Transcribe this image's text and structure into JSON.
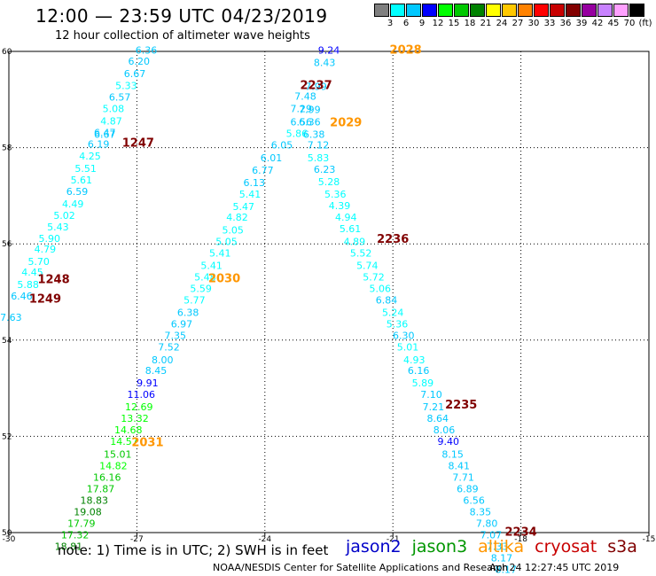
{
  "header": {
    "title": "12:00 — 23:59 UTC 04/23/2019",
    "subtitle": "12 hour collection of altimeter wave heights"
  },
  "color_scale": {
    "unit_label": "(ft)",
    "labels": [
      "3",
      "6",
      "9",
      "12",
      "15",
      "18",
      "21",
      "24",
      "27",
      "30",
      "33",
      "36",
      "39",
      "42",
      "45",
      "70"
    ],
    "colors": [
      "#7f7f7f",
      "#00ffff",
      "#00c8ff",
      "#0000ff",
      "#00ff00",
      "#00c800",
      "#008200",
      "#ffff00",
      "#ffc800",
      "#ff8200",
      "#ff0000",
      "#c80000",
      "#820000",
      "#9600a0",
      "#c882ff",
      "#ffa0ff",
      "#000000"
    ]
  },
  "footer": {
    "note": "note:  1) Time is in UTC;  2) SWH is in feet",
    "satellites": [
      {
        "name": "jason2",
        "color": "#0000c8"
      },
      {
        "name": "jason3",
        "color": "#009600"
      },
      {
        "name": "altika",
        "color": "#ff9600"
      },
      {
        "name": "cryosat",
        "color": "#c80000"
      },
      {
        "name": "s3a",
        "color": "#800000"
      }
    ],
    "credit": "NOAA/NESDIS Center for Satellite Applications and Research",
    "timestamp": "Apr 24 12:27:45 UTC 2019"
  },
  "chart_data": {
    "type": "scatter",
    "title": "12:00 — 23:59 UTC 04/23/2019",
    "subtitle": "12 hour collection of altimeter wave heights",
    "xlim": [
      -30,
      -15
    ],
    "ylim": [
      50,
      60
    ],
    "x_ticks": [
      "-30",
      "-27",
      "-24",
      "-21",
      "-18",
      "-15"
    ],
    "y_ticks": [
      "50",
      "52",
      "54",
      "56",
      "58",
      "60"
    ],
    "grid": true,
    "time_labels": [
      {
        "text": "2028",
        "lon": -20.7,
        "lat": 59.95,
        "color": "#ff9600"
      },
      {
        "text": "2237",
        "lon": -22.8,
        "lat": 59.22,
        "color": "#800000"
      },
      {
        "text": "2029",
        "lon": -22.1,
        "lat": 58.44,
        "color": "#ff9600"
      },
      {
        "text": "1247",
        "lon": -26.97,
        "lat": 58.02,
        "color": "#800000"
      },
      {
        "text": "2236",
        "lon": -21.0,
        "lat": 56.02,
        "color": "#800000"
      },
      {
        "text": "1248",
        "lon": -28.95,
        "lat": 55.18,
        "color": "#800000"
      },
      {
        "text": "2030",
        "lon": -24.95,
        "lat": 55.2,
        "color": "#ff9600"
      },
      {
        "text": "1249",
        "lon": -29.15,
        "lat": 54.78,
        "color": "#800000"
      },
      {
        "text": "2235",
        "lon": -19.4,
        "lat": 52.58,
        "color": "#800000"
      },
      {
        "text": "2031",
        "lon": -26.75,
        "lat": 51.8,
        "color": "#ff9600"
      },
      {
        "text": "2234",
        "lon": -18.0,
        "lat": 49.94,
        "color": "#800000"
      }
    ],
    "series": [
      {
        "name": "1247-1249 track",
        "points": [
          [
            "6.36",
            -26.78,
            59.95
          ],
          [
            "6.20",
            -26.95,
            59.72
          ],
          [
            "6.67",
            -27.05,
            59.47
          ],
          [
            "5.33",
            -27.25,
            59.22
          ],
          [
            "6.57",
            -27.4,
            58.98
          ],
          [
            "5.08",
            -27.55,
            58.74
          ],
          [
            "4.87",
            -27.6,
            58.48
          ],
          [
            "6.47",
            -27.75,
            58.24
          ],
          [
            "6.67",
            -27.75,
            58.2
          ],
          [
            "6.19",
            -27.9,
            58.0
          ],
          [
            "4.25",
            -28.1,
            57.75
          ],
          [
            "5.51",
            -28.2,
            57.5
          ],
          [
            "5.61",
            -28.3,
            57.26
          ],
          [
            "6.59",
            -28.4,
            57.02
          ],
          [
            "4.49",
            -28.5,
            56.76
          ],
          [
            "5.02",
            -28.7,
            56.52
          ],
          [
            "5.43",
            -28.85,
            56.28
          ],
          [
            "5.90",
            -29.05,
            56.04
          ],
          [
            "4.79",
            -29.15,
            55.82
          ],
          [
            "5.70",
            -29.3,
            55.56
          ],
          [
            "4.45",
            -29.45,
            55.34
          ],
          [
            "5.88",
            -29.55,
            55.08
          ],
          [
            "6.46",
            -29.7,
            54.84
          ],
          [
            "7.63",
            -29.95,
            54.4
          ]
        ]
      },
      {
        "name": "2028-2031 track",
        "points": [
          [
            "9.24",
            -22.5,
            59.95
          ],
          [
            "8.43",
            -22.6,
            59.7
          ],
          [
            "7.99",
            -22.8,
            59.2
          ],
          [
            "7.48",
            -23.05,
            59.0
          ],
          [
            "7.29",
            -23.15,
            58.74
          ],
          [
            "7.99",
            -22.95,
            58.72
          ],
          [
            "6.56",
            -23.15,
            58.46
          ],
          [
            "6.36",
            -22.95,
            58.46
          ],
          [
            "6.38",
            -22.85,
            58.2
          ],
          [
            "5.86",
            -23.25,
            58.22
          ],
          [
            "7.12",
            -22.75,
            57.98
          ],
          [
            "6.05",
            -23.6,
            57.98
          ],
          [
            "5.83",
            -22.75,
            57.72
          ],
          [
            "6.01",
            -23.85,
            57.72
          ],
          [
            "6.23",
            -22.6,
            57.48
          ],
          [
            "6.77",
            -24.05,
            57.46
          ],
          [
            "5.28",
            -22.5,
            57.22
          ],
          [
            "6.13",
            -24.25,
            57.2
          ],
          [
            "5.36",
            -22.35,
            56.96
          ],
          [
            "5.41",
            -24.35,
            56.96
          ],
          [
            "4.39",
            -22.25,
            56.72
          ],
          [
            "5.47",
            -24.5,
            56.7
          ],
          [
            "4.94",
            -22.1,
            56.48
          ],
          [
            "4.82",
            -24.65,
            56.48
          ],
          [
            "5.61",
            -22.0,
            56.24
          ],
          [
            "5.05",
            -24.75,
            56.22
          ],
          [
            "4.89",
            -21.9,
            55.98
          ],
          [
            "5.05",
            -24.9,
            55.98
          ],
          [
            "5.52",
            -21.75,
            55.74
          ],
          [
            "5.41",
            -25.05,
            55.74
          ],
          [
            "5.74",
            -21.6,
            55.48
          ],
          [
            "5.41",
            -25.25,
            55.48
          ],
          [
            "5.72",
            -21.45,
            55.24
          ],
          [
            "5.48",
            -25.4,
            55.24
          ],
          [
            "5.06",
            -21.3,
            55.0
          ],
          [
            "5.59",
            -25.5,
            55.0
          ],
          [
            "6.84",
            -21.15,
            54.76
          ],
          [
            "5.77",
            -25.65,
            54.76
          ],
          [
            "5.24",
            -21.0,
            54.5
          ],
          [
            "6.38",
            -25.8,
            54.5
          ],
          [
            "5.36",
            -20.9,
            54.26
          ],
          [
            "6.97",
            -25.95,
            54.26
          ],
          [
            "6.30",
            -20.75,
            54.02
          ],
          [
            "7.35",
            -26.1,
            54.02
          ],
          [
            "5.01",
            -20.65,
            53.78
          ],
          [
            "7.52",
            -26.25,
            53.78
          ],
          [
            "4.93",
            -20.5,
            53.52
          ],
          [
            "8.00",
            -26.4,
            53.52
          ],
          [
            "6.16",
            -20.4,
            53.3
          ],
          [
            "8.45",
            -26.55,
            53.3
          ],
          [
            "5.89",
            -20.3,
            53.04
          ],
          [
            "9.91",
            -26.75,
            53.04
          ],
          [
            "7.10",
            -20.1,
            52.8
          ],
          [
            "11.06",
            -26.9,
            52.8
          ],
          [
            "7.21",
            -20.05,
            52.54
          ],
          [
            "12.69",
            -26.95,
            52.54
          ],
          [
            "8.64",
            -19.95,
            52.3
          ],
          [
            "13.32",
            -27.05,
            52.3
          ],
          [
            "8.06",
            -19.8,
            52.06
          ],
          [
            "14.68",
            -27.2,
            52.06
          ],
          [
            "9.40",
            -19.7,
            51.82
          ],
          [
            "14.57",
            -27.3,
            51.82
          ],
          [
            "8.15",
            -19.6,
            51.56
          ],
          [
            "15.01",
            -27.45,
            51.56
          ],
          [
            "8.41",
            -19.45,
            51.32
          ],
          [
            "14.82",
            -27.55,
            51.32
          ],
          [
            "7.71",
            -19.35,
            51.08
          ],
          [
            "16.16",
            -27.7,
            51.08
          ],
          [
            "6.89",
            -19.25,
            50.84
          ],
          [
            "17.87",
            -27.85,
            50.84
          ],
          [
            "6.56",
            -19.1,
            50.6
          ],
          [
            "18.83",
            -28.0,
            50.6
          ],
          [
            "8.35",
            -18.95,
            50.36
          ],
          [
            "19.08",
            -28.15,
            50.36
          ],
          [
            "7.80",
            -18.8,
            50.12
          ],
          [
            "17.79",
            -28.3,
            50.12
          ],
          [
            "7.07",
            -18.7,
            49.88
          ],
          [
            "17.32",
            -28.45,
            49.88
          ],
          [
            "7.33",
            -18.55,
            49.64
          ],
          [
            "18.81",
            -28.6,
            49.64
          ],
          [
            "8.17",
            -18.45,
            49.4
          ],
          [
            "8.17",
            -18.35,
            49.16
          ]
        ]
      }
    ]
  }
}
